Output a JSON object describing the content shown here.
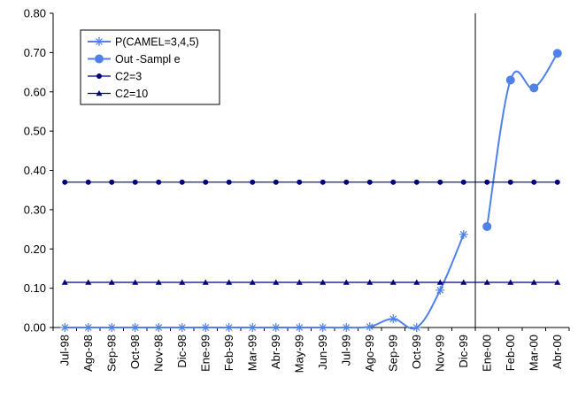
{
  "chart_data": {
    "type": "line",
    "title": "",
    "xlabel": "",
    "ylabel": "",
    "ylim": [
      0,
      0.8
    ],
    "y_ticks": [
      "0.00",
      "0.10",
      "0.20",
      "0.30",
      "0.40",
      "0.50",
      "0.60",
      "0.70",
      "0.80"
    ],
    "categories": [
      "Jul-98",
      "Ago-98",
      "Sep-98",
      "Oct-98",
      "Nov-98",
      "Dic-98",
      "Ene-99",
      "Feb-99",
      "Mar-99",
      "Abr-99",
      "May-99",
      "Jun-99",
      "Jul-99",
      "Ago-99",
      "Sep-99",
      "Oct-99",
      "Nov-99",
      "Dic-99",
      "Ene-00",
      "Feb-00",
      "Mar-00",
      "Abr-00"
    ],
    "vertical_line_after_category": "Dic-99",
    "grid": false,
    "legend_position": "top-left",
    "series": [
      {
        "name": "P(CAMEL=3,4,5)",
        "color": "#4F81E8",
        "marker": "asterisk",
        "values": [
          0,
          0,
          0,
          0,
          0,
          0,
          0,
          0,
          0,
          0,
          0,
          0,
          0,
          0.002,
          0.022,
          0,
          0.095,
          0.237,
          null,
          null,
          null,
          null
        ]
      },
      {
        "name": "Out -Sampl e",
        "color": "#4F81E8",
        "marker": "circle",
        "values": [
          null,
          null,
          null,
          null,
          null,
          null,
          null,
          null,
          null,
          null,
          null,
          null,
          null,
          null,
          null,
          null,
          null,
          null,
          0.257,
          0.63,
          0.61,
          0.698
        ]
      },
      {
        "name": "C2=3",
        "color": "#000080",
        "marker": "dot",
        "values": [
          0.37,
          0.37,
          0.37,
          0.37,
          0.37,
          0.37,
          0.37,
          0.37,
          0.37,
          0.37,
          0.37,
          0.37,
          0.37,
          0.37,
          0.37,
          0.37,
          0.37,
          0.37,
          0.37,
          0.37,
          0.37,
          0.37
        ]
      },
      {
        "name": "C2=10",
        "color": "#000080",
        "marker": "triangle",
        "values": [
          0.115,
          0.115,
          0.115,
          0.115,
          0.115,
          0.115,
          0.115,
          0.115,
          0.115,
          0.115,
          0.115,
          0.115,
          0.115,
          0.115,
          0.115,
          0.115,
          0.115,
          0.115,
          0.115,
          0.115,
          0.115,
          0.115
        ]
      }
    ]
  }
}
